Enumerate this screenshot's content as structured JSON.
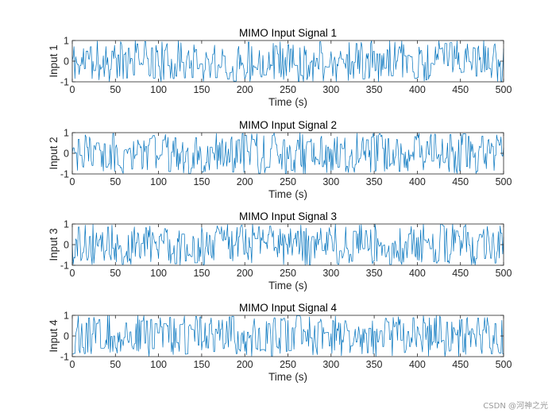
{
  "chart_data": [
    {
      "type": "line",
      "title": "MIMO Input Signal 1",
      "xlabel": "Time (s)",
      "ylabel": "Input 1",
      "xlim": [
        0,
        500
      ],
      "ylim": [
        -1,
        1
      ],
      "xticks": [
        "0",
        "50",
        "100",
        "150",
        "200",
        "250",
        "300",
        "350",
        "400",
        "450",
        "500"
      ],
      "yticks": [
        "-1",
        "0",
        "1"
      ],
      "grid": false,
      "series": [
        {
          "name": "Input 1",
          "description": "random binary-like signal in [-1, 1], 500 samples",
          "seed": 11,
          "color": "#0072bd"
        }
      ]
    },
    {
      "type": "line",
      "title": "MIMO Input Signal 2",
      "xlabel": "Time (s)",
      "ylabel": "Input 2",
      "xlim": [
        0,
        500
      ],
      "ylim": [
        -1,
        1
      ],
      "xticks": [
        "0",
        "50",
        "100",
        "150",
        "200",
        "250",
        "300",
        "350",
        "400",
        "450",
        "500"
      ],
      "yticks": [
        "-1",
        "0",
        "1"
      ],
      "grid": false,
      "series": [
        {
          "name": "Input 2",
          "description": "random signal in [-1, 1], 500 samples",
          "seed": 23,
          "color": "#0072bd"
        }
      ]
    },
    {
      "type": "line",
      "title": "MIMO Input Signal 3",
      "xlabel": "Time (s)",
      "ylabel": "Input 3",
      "xlim": [
        0,
        500
      ],
      "ylim": [
        -1,
        1
      ],
      "xticks": [
        "0",
        "50",
        "100",
        "150",
        "200",
        "250",
        "300",
        "350",
        "400",
        "450",
        "500"
      ],
      "yticks": [
        "-1",
        "0",
        "1"
      ],
      "grid": false,
      "series": [
        {
          "name": "Input 3",
          "description": "random signal in [-1, 1], 500 samples",
          "seed": 37,
          "color": "#0072bd"
        }
      ]
    },
    {
      "type": "line",
      "title": "MIMO Input Signal 4",
      "xlabel": "Time (s)",
      "ylabel": "Input 4",
      "xlim": [
        0,
        500
      ],
      "ylim": [
        -1,
        1
      ],
      "xticks": [
        "0",
        "50",
        "100",
        "150",
        "200",
        "250",
        "300",
        "350",
        "400",
        "450",
        "500"
      ],
      "yticks": [
        "-1",
        "0",
        "1"
      ],
      "grid": false,
      "series": [
        {
          "name": "Input 4",
          "description": "random signal in [-1, 1], 500 samples",
          "seed": 53,
          "color": "#0072bd"
        }
      ]
    }
  ],
  "watermark": "CSDN @河神之光"
}
